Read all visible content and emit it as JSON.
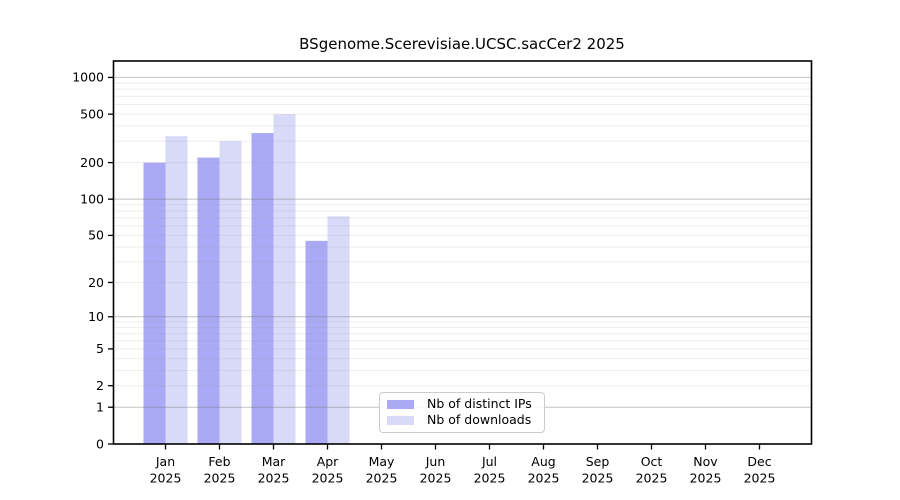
{
  "chart_data": {
    "type": "bar",
    "title": "BSgenome.Scerevisiae.UCSC.sacCer2 2025",
    "xlabel": "",
    "ylabel": "",
    "x_ticks": [
      [
        "Jan",
        "2025"
      ],
      [
        "Feb",
        "2025"
      ],
      [
        "Mar",
        "2025"
      ],
      [
        "Apr",
        "2025"
      ],
      [
        "May",
        "2025"
      ],
      [
        "Jun",
        "2025"
      ],
      [
        "Jul",
        "2025"
      ],
      [
        "Aug",
        "2025"
      ],
      [
        "Sep",
        "2025"
      ],
      [
        "Oct",
        "2025"
      ],
      [
        "Nov",
        "2025"
      ],
      [
        "Dec",
        "2025"
      ]
    ],
    "series": [
      {
        "name": "Nb of distinct IPs",
        "color": "#a9a9f5",
        "values": [
          200,
          220,
          350,
          45,
          0,
          0,
          0,
          0,
          0,
          0,
          0,
          0
        ]
      },
      {
        "name": "Nb of downloads",
        "color": "#d9d9f8",
        "values": [
          330,
          300,
          500,
          72,
          0,
          0,
          0,
          0,
          0,
          0,
          0,
          0
        ]
      }
    ],
    "yscale": "log1p",
    "yticks": [
      0,
      1,
      2,
      5,
      10,
      20,
      50,
      100,
      200,
      500,
      1000
    ],
    "ylim": [
      0,
      1360
    ],
    "grid": "on",
    "grid_major": [
      1,
      10,
      100,
      1000
    ],
    "grid_minor": [
      2,
      3,
      4,
      5,
      6,
      7,
      8,
      9,
      20,
      30,
      40,
      50,
      60,
      70,
      80,
      90,
      200,
      300,
      400,
      500,
      600,
      700,
      800,
      900
    ],
    "legend_position": "lower center",
    "colors": {
      "axis": "#000000",
      "tick_label": "#000000",
      "grid_major": "rgba(120,120,120,0.45)",
      "grid_minor": "rgba(160,160,160,0.18)",
      "legend_border": "#cccccc",
      "background": "#ffffff"
    }
  }
}
